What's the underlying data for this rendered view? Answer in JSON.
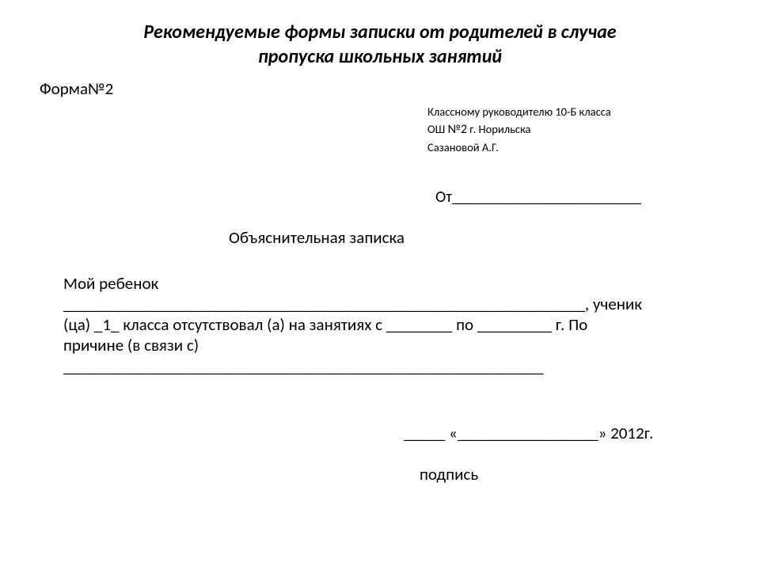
{
  "title_line1": "Рекомендуемые формы записки от родителей в случае",
  "title_line2": "пропуска школьных занятий",
  "form_label": "Форма№2",
  "recipient": {
    "line1": "Классному руководителю 10-Б класса",
    "line2_prefix": "ОШ ",
    "line2_num": "№2",
    "line2_suffix": " г. Норильска",
    "line3": "Сазановой А.Г."
  },
  "from_label": "От",
  "from_blank": "________________________",
  "note_title": "Объяснительная записка",
  "body": {
    "line1": "Мой ребенок",
    "line2": "_______________________________________________________________, ученик",
    "line3": "(ца) _1_ класса отсутствовал (а) на занятиях с ________ по _________ г. По",
    "line4": "причине (в связи с)",
    "line5": "__________________________________________________________"
  },
  "date": {
    "blank1": "_____",
    "open_quote": " «",
    "blank2": "_________________",
    "close_quote": "» ",
    "year": "2012г."
  },
  "signature_label": "подпись",
  "colors": {
    "text": "#000000",
    "background": "#ffffff"
  },
  "typography": {
    "title_fontsize": 24,
    "body_fontsize": 21,
    "recipient_fontsize": 14.5,
    "font_family": "Calibri"
  }
}
